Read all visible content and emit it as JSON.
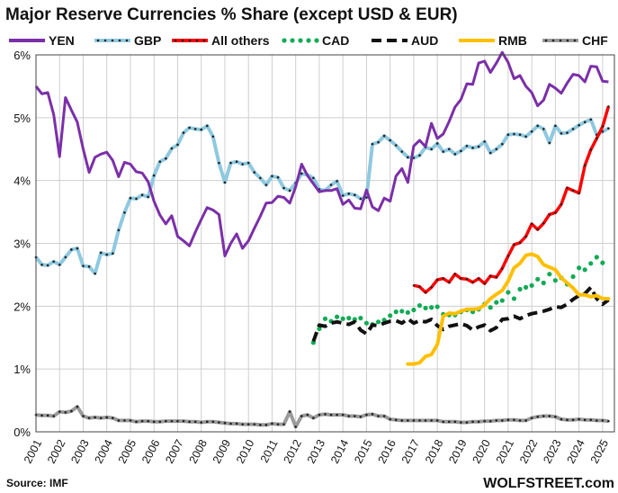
{
  "chart_data": {
    "type": "line",
    "title": "Major Reserve Currencies % Share (except USD & EUR)",
    "source": "Source: IMF",
    "brand": "WOLFSTREET.com",
    "ylim": [
      0,
      6
    ],
    "yticks": [
      0,
      1,
      2,
      3,
      4,
      5,
      6
    ],
    "ytick_labels": [
      "0%",
      "1%",
      "2%",
      "3%",
      "4%",
      "5%",
      "6%"
    ],
    "xlim": [
      2001,
      2025.5
    ],
    "xticks": [
      2001,
      2002,
      2003,
      2004,
      2005,
      2006,
      2007,
      2008,
      2009,
      2010,
      2011,
      2012,
      2013,
      2014,
      2015,
      2016,
      2017,
      2018,
      2019,
      2020,
      2021,
      2022,
      2023,
      2024,
      2025
    ],
    "xtick_labels": [
      "2001",
      "2002",
      "2003",
      "2004",
      "2005",
      "2006",
      "2007",
      "2008",
      "2009",
      "2010",
      "2011",
      "2012",
      "2013",
      "2014",
      "2015",
      "2016",
      "2017",
      "2018",
      "2019",
      "2020",
      "2021",
      "2022",
      "2023",
      "2024",
      "2025"
    ],
    "grid": true,
    "legend_position": "top",
    "series": [
      {
        "name": "YEN",
        "color": "#7b2fa8",
        "style": "solid",
        "x": [
          2001,
          2001.25,
          2001.5,
          2001.75,
          2002,
          2002.25,
          2002.5,
          2002.75,
          2003,
          2003.25,
          2003.5,
          2003.75,
          2004,
          2004.25,
          2004.5,
          2004.75,
          2005,
          2005.25,
          2005.5,
          2005.75,
          2006,
          2006.25,
          2006.5,
          2006.75,
          2007,
          2007.25,
          2007.5,
          2007.75,
          2008,
          2008.25,
          2008.5,
          2008.75,
          2009,
          2009.25,
          2009.5,
          2009.75,
          2010,
          2010.25,
          2010.5,
          2010.75,
          2011,
          2011.25,
          2011.5,
          2011.75,
          2012,
          2012.25,
          2012.5,
          2012.75,
          2013,
          2013.25,
          2013.5,
          2013.75,
          2014,
          2014.25,
          2014.5,
          2014.75,
          2015,
          2015.25,
          2015.5,
          2015.75,
          2016,
          2016.25,
          2016.5,
          2016.75,
          2017,
          2017.25,
          2017.5,
          2017.75,
          2018,
          2018.25,
          2018.5,
          2018.75,
          2019,
          2019.25,
          2019.5,
          2019.75,
          2020,
          2020.25,
          2020.5,
          2020.75,
          2021,
          2021.25,
          2021.5,
          2021.75,
          2022,
          2022.25,
          2022.5,
          2022.75,
          2023,
          2023.25,
          2023.5,
          2023.75,
          2024,
          2024.25,
          2024.5,
          2024.75,
          2025,
          2025.25
        ],
        "values": [
          5.5,
          5.38,
          5.4,
          5.05,
          4.38,
          5.32,
          5.12,
          4.93,
          4.5,
          4.13,
          4.37,
          4.42,
          4.45,
          4.32,
          4.06,
          4.29,
          4.26,
          4.14,
          4.12,
          3.98,
          3.67,
          3.45,
          3.31,
          3.44,
          3.11,
          3.04,
          2.96,
          3.18,
          3.38,
          3.57,
          3.53,
          3.46,
          2.8,
          3.0,
          3.15,
          2.92,
          3.04,
          3.24,
          3.43,
          3.64,
          3.65,
          3.75,
          3.73,
          3.64,
          3.9,
          4.26,
          4.08,
          3.95,
          3.82,
          3.84,
          3.84,
          3.87,
          3.62,
          3.69,
          3.56,
          3.55,
          3.85,
          3.58,
          3.52,
          3.72,
          3.67,
          4.07,
          4.19,
          3.97,
          4.55,
          4.64,
          4.54,
          4.91,
          4.67,
          4.74,
          4.94,
          5.17,
          5.29,
          5.54,
          5.53,
          5.87,
          5.9,
          5.72,
          5.87,
          6.04,
          5.88,
          5.62,
          5.67,
          5.5,
          5.4,
          5.19,
          5.28,
          5.53,
          5.47,
          5.39,
          5.55,
          5.69,
          5.67,
          5.57,
          5.82,
          5.81,
          5.58,
          5.57
        ]
      },
      {
        "name": "GBP",
        "color": "#8ec9e0",
        "style": "dotted-overlay",
        "x": [
          2001,
          2001.25,
          2001.5,
          2001.75,
          2002,
          2002.25,
          2002.5,
          2002.75,
          2003,
          2003.25,
          2003.5,
          2003.75,
          2004,
          2004.25,
          2004.5,
          2004.75,
          2005,
          2005.25,
          2005.5,
          2005.75,
          2006,
          2006.25,
          2006.5,
          2006.75,
          2007,
          2007.25,
          2007.5,
          2007.75,
          2008,
          2008.25,
          2008.5,
          2008.75,
          2009,
          2009.25,
          2009.5,
          2009.75,
          2010,
          2010.25,
          2010.5,
          2010.75,
          2011,
          2011.25,
          2011.5,
          2011.75,
          2012,
          2012.25,
          2012.5,
          2012.75,
          2013,
          2013.25,
          2013.5,
          2013.75,
          2014,
          2014.25,
          2014.5,
          2014.75,
          2015,
          2015.25,
          2015.5,
          2015.75,
          2016,
          2016.25,
          2016.5,
          2016.75,
          2017,
          2017.25,
          2017.5,
          2017.75,
          2018,
          2018.25,
          2018.5,
          2018.75,
          2019,
          2019.25,
          2019.5,
          2019.75,
          2020,
          2020.25,
          2020.5,
          2020.75,
          2021,
          2021.25,
          2021.5,
          2021.75,
          2022,
          2022.25,
          2022.5,
          2022.75,
          2023,
          2023.25,
          2023.5,
          2023.75,
          2024,
          2024.25,
          2024.5,
          2024.75,
          2025,
          2025.25
        ],
        "values": [
          2.78,
          2.66,
          2.65,
          2.71,
          2.66,
          2.78,
          2.9,
          2.92,
          2.64,
          2.63,
          2.52,
          2.85,
          2.82,
          2.84,
          3.21,
          3.49,
          3.72,
          3.71,
          3.77,
          3.74,
          4.08,
          4.3,
          4.35,
          4.51,
          4.57,
          4.76,
          4.84,
          4.82,
          4.81,
          4.87,
          4.7,
          4.28,
          3.97,
          4.28,
          4.3,
          4.26,
          4.28,
          4.13,
          4.04,
          3.93,
          4.07,
          4.05,
          3.88,
          3.84,
          3.96,
          4.11,
          4.09,
          4.04,
          3.86,
          3.84,
          3.93,
          3.99,
          3.76,
          3.79,
          3.77,
          3.71,
          3.73,
          4.58,
          4.61,
          4.71,
          4.64,
          4.56,
          4.46,
          4.37,
          4.36,
          4.4,
          4.53,
          4.5,
          4.59,
          4.46,
          4.5,
          4.42,
          4.47,
          4.55,
          4.52,
          4.54,
          4.62,
          4.44,
          4.5,
          4.58,
          4.73,
          4.74,
          4.73,
          4.7,
          4.78,
          4.87,
          4.82,
          4.6,
          4.87,
          4.75,
          4.76,
          4.82,
          4.88,
          4.93,
          4.97,
          4.73,
          4.78,
          4.83
        ]
      },
      {
        "name": "All others",
        "color": "#ff0000",
        "style": "solid-dotted",
        "x": [
          2017,
          2017.25,
          2017.5,
          2017.75,
          2018,
          2018.25,
          2018.5,
          2018.75,
          2019,
          2019.25,
          2019.5,
          2019.75,
          2020,
          2020.25,
          2020.5,
          2020.75,
          2021,
          2021.25,
          2021.5,
          2021.75,
          2022,
          2022.25,
          2022.5,
          2022.75,
          2023,
          2023.25,
          2023.5,
          2023.75,
          2024,
          2024.25,
          2024.5,
          2024.75,
          2025,
          2025.25
        ],
        "values": [
          2.33,
          2.31,
          2.22,
          2.3,
          2.42,
          2.44,
          2.38,
          2.51,
          2.44,
          2.43,
          2.38,
          2.44,
          2.36,
          2.48,
          2.46,
          2.6,
          2.8,
          2.98,
          3.01,
          3.11,
          3.31,
          3.22,
          3.32,
          3.46,
          3.49,
          3.62,
          3.88,
          3.84,
          3.8,
          4.24,
          4.49,
          4.67,
          4.86,
          5.18
        ]
      },
      {
        "name": "CAD",
        "color": "#11aa55",
        "style": "dots",
        "x": [
          2012.75,
          2013,
          2013.25,
          2013.5,
          2013.75,
          2014,
          2014.25,
          2014.5,
          2014.75,
          2015,
          2015.25,
          2015.5,
          2015.75,
          2016,
          2016.25,
          2016.5,
          2016.75,
          2017,
          2017.25,
          2017.5,
          2017.75,
          2018,
          2018.25,
          2018.5,
          2018.75,
          2019,
          2019.25,
          2019.5,
          2019.75,
          2020,
          2020.25,
          2020.5,
          2020.75,
          2021,
          2021.25,
          2021.5,
          2021.75,
          2022,
          2022.25,
          2022.5,
          2022.75,
          2023,
          2023.25,
          2023.5,
          2023.75,
          2024,
          2024.25,
          2024.5,
          2024.75,
          2025
        ],
        "values": [
          1.42,
          1.64,
          1.8,
          1.76,
          1.83,
          1.8,
          1.81,
          1.79,
          1.81,
          1.73,
          1.71,
          1.75,
          1.78,
          1.85,
          1.91,
          1.92,
          1.9,
          1.94,
          2.01,
          1.97,
          1.98,
          1.99,
          1.87,
          1.86,
          1.86,
          1.91,
          1.94,
          1.91,
          1.95,
          2.03,
          1.98,
          2.06,
          2.09,
          2.22,
          2.12,
          2.27,
          2.3,
          2.33,
          2.43,
          2.37,
          2.51,
          2.41,
          2.45,
          2.35,
          2.47,
          2.61,
          2.58,
          2.68,
          2.78,
          2.69
        ]
      },
      {
        "name": "AUD",
        "color": "#111111",
        "style": "dashed",
        "x": [
          2012.75,
          2013,
          2013.25,
          2013.5,
          2013.75,
          2014,
          2014.25,
          2014.5,
          2014.75,
          2015,
          2015.25,
          2015.5,
          2015.75,
          2016,
          2016.25,
          2016.5,
          2016.75,
          2017,
          2017.25,
          2017.5,
          2017.75,
          2018,
          2018.25,
          2018.5,
          2018.75,
          2019,
          2019.25,
          2019.5,
          2019.75,
          2020,
          2020.25,
          2020.5,
          2020.75,
          2021,
          2021.25,
          2021.5,
          2021.75,
          2022,
          2022.25,
          2022.5,
          2022.75,
          2023,
          2023.25,
          2023.5,
          2023.75,
          2024,
          2024.25,
          2024.5,
          2024.75,
          2025,
          2025.25
        ],
        "values": [
          1.44,
          1.7,
          1.68,
          1.73,
          1.75,
          1.73,
          1.71,
          1.75,
          1.62,
          1.56,
          1.7,
          1.69,
          1.73,
          1.76,
          1.77,
          1.73,
          1.8,
          1.73,
          1.77,
          1.75,
          1.79,
          1.69,
          1.63,
          1.68,
          1.7,
          1.72,
          1.69,
          1.62,
          1.67,
          1.7,
          1.61,
          1.66,
          1.79,
          1.8,
          1.84,
          1.8,
          1.85,
          1.88,
          1.9,
          1.92,
          1.95,
          1.99,
          1.98,
          2.03,
          2.11,
          2.17,
          2.2,
          2.3,
          2.12,
          2.03,
          2.1
        ]
      },
      {
        "name": "RMB",
        "color": "#ffbf00",
        "style": "solid-thick",
        "x": [
          2016.75,
          2017,
          2017.25,
          2017.5,
          2017.75,
          2018,
          2018.25,
          2018.5,
          2018.75,
          2019,
          2019.25,
          2019.5,
          2019.75,
          2020,
          2020.25,
          2020.5,
          2020.75,
          2021,
          2021.25,
          2021.5,
          2021.75,
          2022,
          2022.25,
          2022.5,
          2022.75,
          2023,
          2023.25,
          2023.5,
          2023.75,
          2024,
          2024.25,
          2024.5,
          2024.75,
          2025,
          2025.25
        ],
        "values": [
          1.08,
          1.08,
          1.1,
          1.2,
          1.23,
          1.39,
          1.84,
          1.89,
          1.88,
          1.92,
          1.95,
          1.95,
          1.96,
          2.02,
          2.12,
          2.19,
          2.25,
          2.4,
          2.61,
          2.68,
          2.81,
          2.83,
          2.79,
          2.66,
          2.62,
          2.58,
          2.45,
          2.37,
          2.29,
          2.18,
          2.18,
          2.15,
          2.17,
          2.12,
          2.12
        ]
      },
      {
        "name": "CHF",
        "color": "#9a9a9a",
        "style": "dotted-overlay",
        "x": [
          2001,
          2001.25,
          2001.5,
          2001.75,
          2002,
          2002.25,
          2002.5,
          2002.75,
          2003,
          2003.25,
          2003.5,
          2003.75,
          2004,
          2004.25,
          2004.5,
          2004.75,
          2005,
          2005.25,
          2005.5,
          2005.75,
          2006,
          2006.25,
          2006.5,
          2006.75,
          2007,
          2007.25,
          2007.5,
          2007.75,
          2008,
          2008.25,
          2008.5,
          2008.75,
          2009,
          2009.25,
          2009.5,
          2009.75,
          2010,
          2010.25,
          2010.5,
          2010.75,
          2011,
          2011.25,
          2011.5,
          2011.75,
          2012,
          2012.25,
          2012.5,
          2012.75,
          2013,
          2013.25,
          2013.5,
          2013.75,
          2014,
          2014.25,
          2014.5,
          2014.75,
          2015,
          2015.25,
          2015.5,
          2015.75,
          2016,
          2016.25,
          2016.5,
          2016.75,
          2017,
          2017.25,
          2017.5,
          2017.75,
          2018,
          2018.25,
          2018.5,
          2018.75,
          2019,
          2019.25,
          2019.5,
          2019.75,
          2020,
          2020.25,
          2020.5,
          2020.75,
          2021,
          2021.25,
          2021.5,
          2021.75,
          2022,
          2022.25,
          2022.5,
          2022.75,
          2023,
          2023.25,
          2023.5,
          2023.75,
          2024,
          2024.25,
          2024.5,
          2024.75,
          2025,
          2025.25
        ],
        "values": [
          0.27,
          0.26,
          0.26,
          0.25,
          0.32,
          0.31,
          0.33,
          0.4,
          0.25,
          0.22,
          0.23,
          0.22,
          0.23,
          0.22,
          0.18,
          0.18,
          0.18,
          0.16,
          0.17,
          0.17,
          0.16,
          0.16,
          0.17,
          0.17,
          0.17,
          0.17,
          0.16,
          0.16,
          0.15,
          0.16,
          0.16,
          0.15,
          0.14,
          0.13,
          0.13,
          0.12,
          0.12,
          0.12,
          0.11,
          0.11,
          0.13,
          0.12,
          0.12,
          0.32,
          0.08,
          0.25,
          0.27,
          0.22,
          0.27,
          0.28,
          0.27,
          0.27,
          0.27,
          0.25,
          0.25,
          0.24,
          0.27,
          0.28,
          0.25,
          0.25,
          0.2,
          0.19,
          0.18,
          0.18,
          0.18,
          0.18,
          0.18,
          0.18,
          0.18,
          0.16,
          0.16,
          0.16,
          0.15,
          0.15,
          0.16,
          0.16,
          0.17,
          0.17,
          0.18,
          0.18,
          0.19,
          0.19,
          0.18,
          0.18,
          0.22,
          0.24,
          0.25,
          0.25,
          0.24,
          0.2,
          0.19,
          0.19,
          0.2,
          0.19,
          0.19,
          0.18,
          0.18,
          0.17
        ]
      }
    ]
  }
}
